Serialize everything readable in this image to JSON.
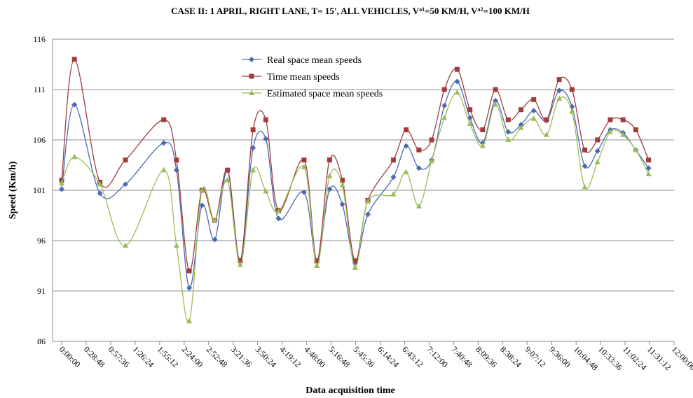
{
  "chart_data": {
    "type": "line",
    "title": [
      "CASE II: 1 APRIL, RIGHT LANE, T= 15', ALL VEHICLES, V",
      "a1",
      "=50 KM/H, V",
      "a2",
      "=100 KM/H"
    ],
    "x_label": "Data acquisition time",
    "y_label": "Speed (Km/h)",
    "x": [
      0,
      15,
      45,
      75,
      120,
      135,
      150,
      165,
      180,
      195,
      210,
      225,
      240,
      255,
      285,
      300,
      315,
      330,
      345,
      360,
      390,
      405,
      420,
      435,
      450,
      465,
      480,
      495,
      510,
      525,
      540,
      555,
      570,
      585,
      600,
      615,
      630,
      645,
      660,
      675,
      690
    ],
    "series": [
      {
        "name": "Real space mean speeds",
        "color": "#4a6ab0",
        "marker": "diamond",
        "values": [
          101.1,
          109.5,
          100.7,
          101.6,
          105.7,
          103,
          91.3,
          99.5,
          96.1,
          103,
          94,
          105.2,
          106.1,
          98.2,
          100.8,
          94,
          101.1,
          99.6,
          93.8,
          98.6,
          102.3,
          105.4,
          103.2,
          104,
          109.4,
          111.8,
          108.2,
          105.7,
          109.9,
          106.8,
          107.5,
          108.9,
          107.9,
          110.9,
          109.3,
          103.4,
          104.9,
          107,
          106.7,
          105,
          103.2
        ]
      },
      {
        "name": "Time mean speeds",
        "color": "#a03c3c",
        "marker": "square",
        "values": [
          102,
          114,
          101.8,
          104,
          108,
          104,
          93,
          101,
          98,
          103,
          94,
          107,
          108,
          99,
          104,
          94,
          104,
          102,
          94,
          100,
          104,
          107,
          105,
          106,
          111,
          113,
          109,
          107,
          111,
          108,
          109,
          110,
          108,
          112,
          111,
          105,
          106,
          108,
          108,
          107,
          104
        ]
      },
      {
        "name": "Estimated space mean speeds",
        "color": "#9bbb59",
        "marker": "triangle",
        "values": [
          101.7,
          104.3,
          101.6,
          95.5,
          103,
          95.5,
          88,
          101,
          98,
          102,
          93.6,
          103,
          100.9,
          98.9,
          103.3,
          93.5,
          102.4,
          101.5,
          93.3,
          99.9,
          100.6,
          102.8,
          99.4,
          103.9,
          108.2,
          110.7,
          107.6,
          105.4,
          109.5,
          106,
          107.2,
          108.1,
          106.5,
          110.1,
          108.8,
          101.3,
          103.8,
          106.8,
          106.5,
          105,
          102.6
        ]
      }
    ],
    "xlim": [
      0,
      720
    ],
    "xticks": [
      {
        "value": 0,
        "label": "0:00:00"
      },
      {
        "value": 28.8,
        "label": "0:28:48"
      },
      {
        "value": 57.6,
        "label": "0:57:36"
      },
      {
        "value": 86.4,
        "label": "1:26:24"
      },
      {
        "value": 115.2,
        "label": "1:55:12"
      },
      {
        "value": 144,
        "label": "2:24:00"
      },
      {
        "value": 172.8,
        "label": "2:52:48"
      },
      {
        "value": 201.6,
        "label": "3:21:36"
      },
      {
        "value": 230.4,
        "label": "3:50:24"
      },
      {
        "value": 259.2,
        "label": "4:19:12"
      },
      {
        "value": 288,
        "label": "4:48:00"
      },
      {
        "value": 316.8,
        "label": "5:16:48"
      },
      {
        "value": 345.6,
        "label": "5:45:36"
      },
      {
        "value": 374.4,
        "label": "6:14:24"
      },
      {
        "value": 403.2,
        "label": "6:43:12"
      },
      {
        "value": 432,
        "label": "7:12:00"
      },
      {
        "value": 460.8,
        "label": "7:40:48"
      },
      {
        "value": 489.6,
        "label": "8:09:36"
      },
      {
        "value": 518.4,
        "label": "8:38:24"
      },
      {
        "value": 547.2,
        "label": "9:07:12"
      },
      {
        "value": 576,
        "label": "9:36:00"
      },
      {
        "value": 604.8,
        "label": "10:04:48"
      },
      {
        "value": 633.6,
        "label": "10:33:36"
      },
      {
        "value": 662.4,
        "label": "11:02:24"
      },
      {
        "value": 691.2,
        "label": "11:31:12"
      },
      {
        "value": 720,
        "label": "12:00:00"
      }
    ],
    "ylim": [
      86,
      116
    ],
    "yticks": [
      86,
      91,
      96,
      101,
      106,
      111,
      116
    ],
    "grid": true,
    "legend": "top"
  }
}
